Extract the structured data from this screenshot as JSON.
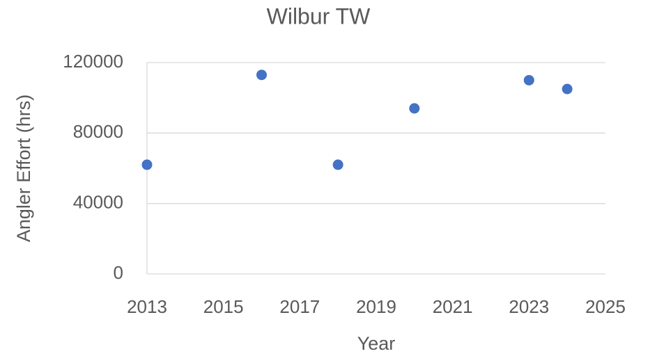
{
  "chart_data": {
    "type": "scatter",
    "title": "Wilbur TW",
    "x_label": "Year",
    "y_label": "Angler Effort (hrs)",
    "x": [
      2013,
      2016,
      2018,
      2020,
      2023,
      2024
    ],
    "values": [
      62000,
      113000,
      62000,
      94000,
      110000,
      105000
    ],
    "color": "#4472c4",
    "xlim": [
      2013,
      2025
    ],
    "xticks": [
      2013,
      2015,
      2017,
      2019,
      2021,
      2023,
      2025
    ],
    "ylim": [
      0,
      120000
    ],
    "yticks": [
      0,
      40000,
      80000,
      120000
    ],
    "grid": true
  }
}
